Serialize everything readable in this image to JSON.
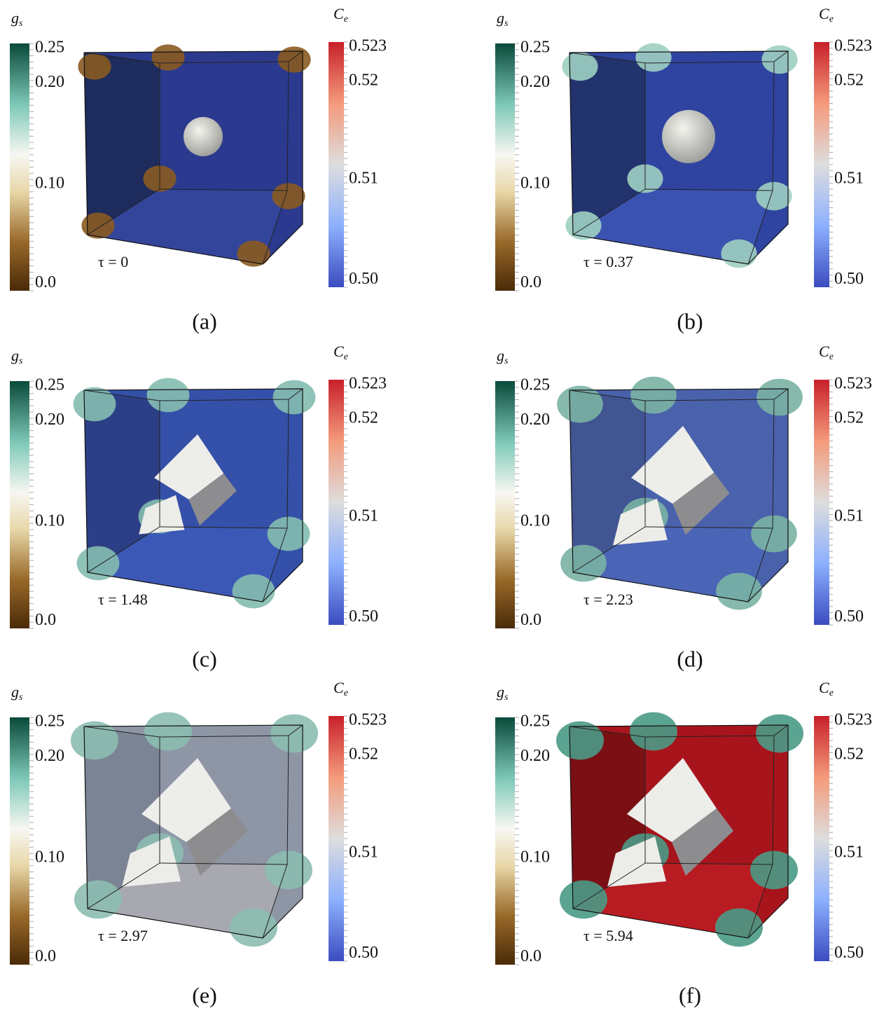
{
  "panels": [
    {
      "gs_symbol": "g",
      "gs_subscript": "s",
      "gs_ticks": [
        "0.25",
        "0.20",
        "0.10",
        "0.0"
      ],
      "ce_symbol": "C",
      "ce_subscript": "e",
      "ce_ticks": [
        "0.523",
        "0.52",
        "0.51",
        "0.50"
      ],
      "time_label": "τ = 0",
      "caption": "(a)"
    },
    {
      "gs_symbol": "g",
      "gs_subscript": "s",
      "gs_ticks": [
        "0.25",
        "0.20",
        "0.10",
        "0.0"
      ],
      "ce_symbol": "C",
      "ce_subscript": "e",
      "ce_ticks": [
        "0.523",
        "0.52",
        "0.51",
        "0.50"
      ],
      "time_label": "τ = 0.37",
      "caption": "(b)"
    },
    {
      "gs_symbol": "g",
      "gs_subscript": "s",
      "gs_ticks": [
        "0.25",
        "0.20",
        "0.10",
        "0.0"
      ],
      "ce_symbol": "C",
      "ce_subscript": "e",
      "ce_ticks": [
        "0.523",
        "0.52",
        "0.51",
        "0.50"
      ],
      "time_label": "τ = 1.48",
      "caption": "(c)"
    },
    {
      "gs_symbol": "g",
      "gs_subscript": "s",
      "gs_ticks": [
        "0.25",
        "0.20",
        "0.10",
        "0.0"
      ],
      "ce_symbol": "C",
      "ce_subscript": "e",
      "ce_ticks": [
        "0.523",
        "0.52",
        "0.51",
        "0.50"
      ],
      "time_label": "τ = 2.23",
      "caption": "(d)"
    },
    {
      "gs_symbol": "g",
      "gs_subscript": "s",
      "gs_ticks": [
        "0.25",
        "0.20",
        "0.10",
        "0.0"
      ],
      "ce_symbol": "C",
      "ce_subscript": "e",
      "ce_ticks": [
        "0.523",
        "0.52",
        "0.51",
        "0.50"
      ],
      "time_label": "τ = 2.97",
      "caption": "(e)"
    },
    {
      "gs_symbol": "g",
      "gs_subscript": "s",
      "gs_ticks": [
        "0.25",
        "0.20",
        "0.10",
        "0.0"
      ],
      "ce_symbol": "C",
      "ce_subscript": "e",
      "ce_ticks": [
        "0.523",
        "0.52",
        "0.51",
        "0.50"
      ],
      "time_label": "τ = 5.94",
      "caption": "(f)"
    }
  ]
}
